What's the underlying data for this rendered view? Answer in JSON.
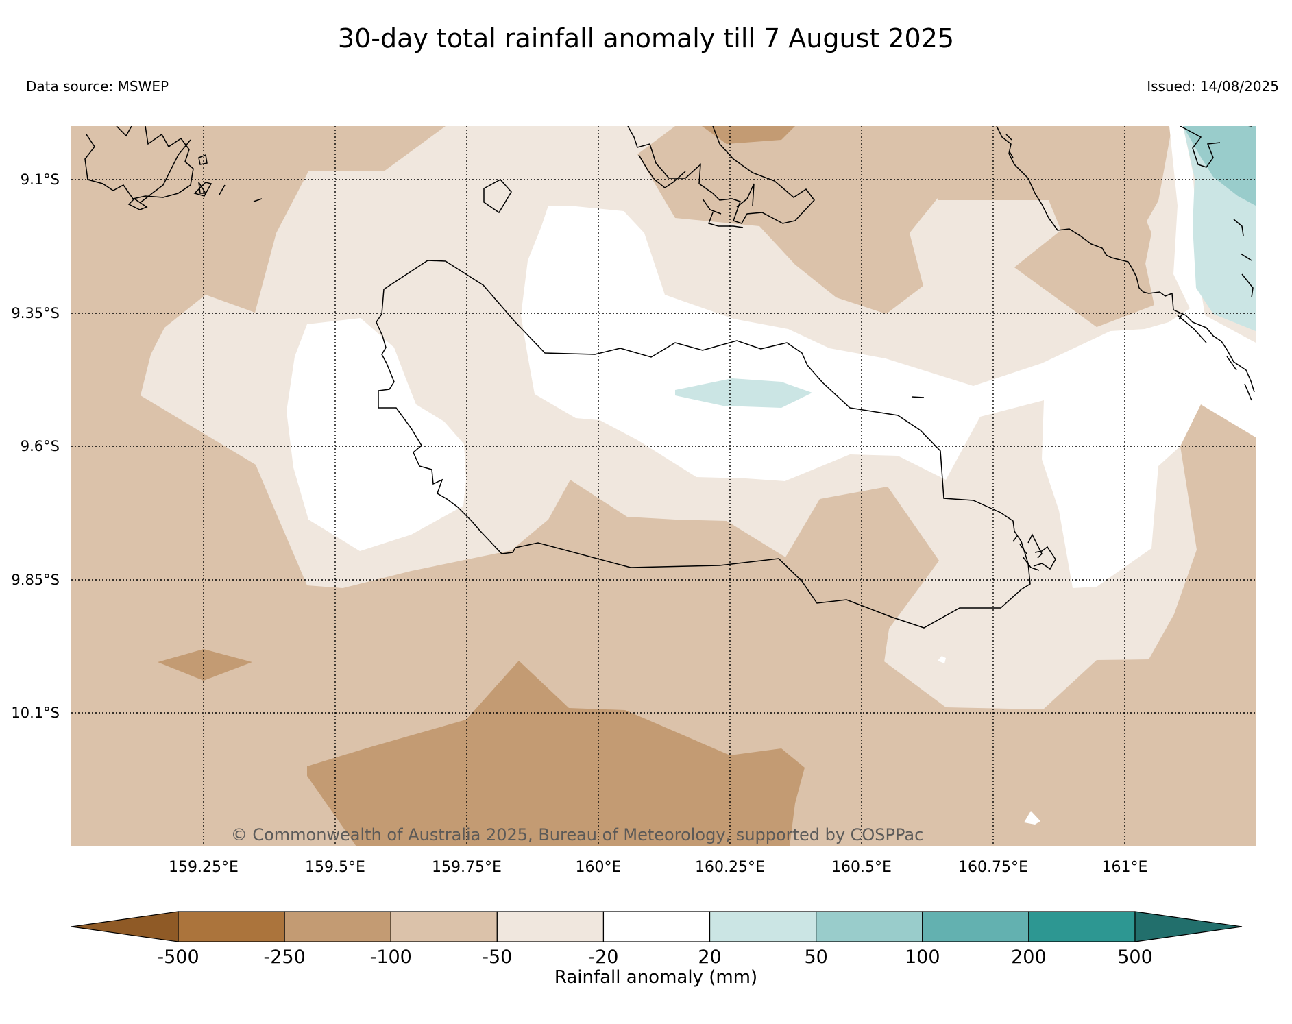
{
  "title": "30-day total rainfall anomaly till 7 August 2025",
  "data_source": "Data source: MSWEP",
  "issued": "Issued: 14/08/2025",
  "copyright": "© Commonwealth of Australia 2025, Bureau of Meteorology, supported by COSPPac",
  "lat_labels": [
    "9.1°S",
    "9.35°S",
    "9.6°S",
    "9.85°S",
    "10.1°S"
  ],
  "lon_labels": [
    "159.25°E",
    "159.5°E",
    "159.75°E",
    "160°E",
    "160.25°E",
    "160.5°E",
    "160.75°E",
    "161°E"
  ],
  "legend": {
    "title": "Rainfall anomaly (mm)",
    "ticks": [
      "-500",
      "-250",
      "-100",
      "-50",
      "-20",
      "20",
      "50",
      "100",
      "200",
      "500"
    ],
    "colors": [
      "#8f5a26",
      "#ab743c",
      "#c39b73",
      "#dbc2aa",
      "#f0e7de",
      "#ffffff",
      "#cbe5e4",
      "#99cccb",
      "#63b1b0",
      "#2d9792",
      "#226f6c"
    ]
  },
  "palette": {
    "lt250": "#c39b73",
    "lt100": "#dbc2aa",
    "lt50": "#f0e7de",
    "neutral": "#ffffff",
    "gt20": "#cbe5e4",
    "gt50": "#99cccb"
  }
}
